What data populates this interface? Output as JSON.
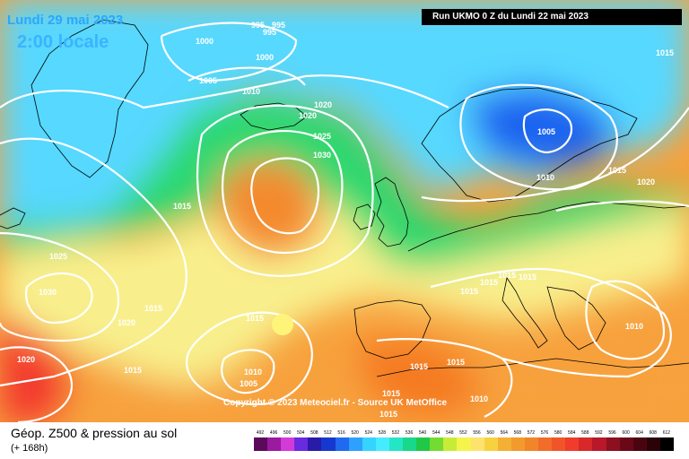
{
  "map": {
    "date": "Lundi 29 mai 2023",
    "time": "2:00 locale",
    "run": "Run UKMO 0 Z du Lundi 22 mai 2023",
    "copyright": "Copyright © 2023 Meteociel.fr - Source UK MetOffice",
    "isobar_labels": [
      "995",
      "995",
      "995",
      "1000",
      "1000",
      "1005",
      "1010",
      "1020",
      "1020",
      "1025",
      "1030",
      "1015",
      "1025",
      "1030",
      "1020",
      "1015",
      "1020",
      "1015",
      "1010",
      "1005",
      "1015",
      "1015",
      "1015",
      "1015",
      "1015",
      "1015",
      "1015",
      "1010",
      "1015",
      "1015",
      "1010",
      "1005",
      "1010",
      "1015",
      "1020",
      "1015"
    ],
    "colors": {
      "deep_blue": "#0a1aa8",
      "blue": "#1f58e8",
      "cyan": "#56d8ff",
      "green": "#2ad870",
      "yellow": "#f8ef8c",
      "orange": "#f7a13c",
      "red": "#f33a2d",
      "contour": "#ffffff",
      "coast": "#000000"
    }
  },
  "footer": {
    "title": "Géop. Z500 & pression au sol",
    "subtitle": "(+ 168h)"
  },
  "legend": {
    "ticks": [
      "492",
      "496",
      "500",
      "504",
      "508",
      "512",
      "516",
      "520",
      "524",
      "528",
      "532",
      "536",
      "540",
      "544",
      "548",
      "552",
      "556",
      "560",
      "564",
      "568",
      "572",
      "576",
      "580",
      "584",
      "588",
      "592",
      "596",
      "600",
      "604",
      "608",
      "612"
    ],
    "colors": [
      "#5b0a5b",
      "#9a1aa0",
      "#d43ad8",
      "#6a2ae0",
      "#2a1aa8",
      "#1538d0",
      "#1f6af0",
      "#2ea0ff",
      "#35d4ff",
      "#45ecff",
      "#24e6c6",
      "#18d88a",
      "#20c84a",
      "#74dc30",
      "#c7ec38",
      "#f4f44a",
      "#fde36e",
      "#f8d23e",
      "#f4b034",
      "#f29a2c",
      "#f2842a",
      "#f26c2a",
      "#f2542a",
      "#f03c2a",
      "#d8282a",
      "#b8182a",
      "#8c1020",
      "#6a0818",
      "#4a0410",
      "#2a0208",
      "#000000"
    ]
  }
}
